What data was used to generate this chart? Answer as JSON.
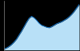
{
  "x": [
    0,
    1,
    2,
    3,
    4,
    5,
    6,
    7,
    8,
    9,
    10,
    11,
    12,
    13,
    14,
    15,
    16,
    17,
    18,
    19,
    20,
    21,
    22,
    23,
    24,
    25,
    26,
    27,
    28,
    29,
    30
  ],
  "y": [
    2,
    4,
    7,
    11,
    16,
    22,
    30,
    38,
    47,
    56,
    64,
    68,
    65,
    60,
    54,
    50,
    48,
    46,
    45,
    47,
    50,
    53,
    55,
    57,
    60,
    63,
    67,
    72,
    78,
    85,
    92
  ],
  "line_color": "#1a7acc",
  "fill_color": "#b8e0f7",
  "background_color": "#000000",
  "spine_color": "#888888"
}
